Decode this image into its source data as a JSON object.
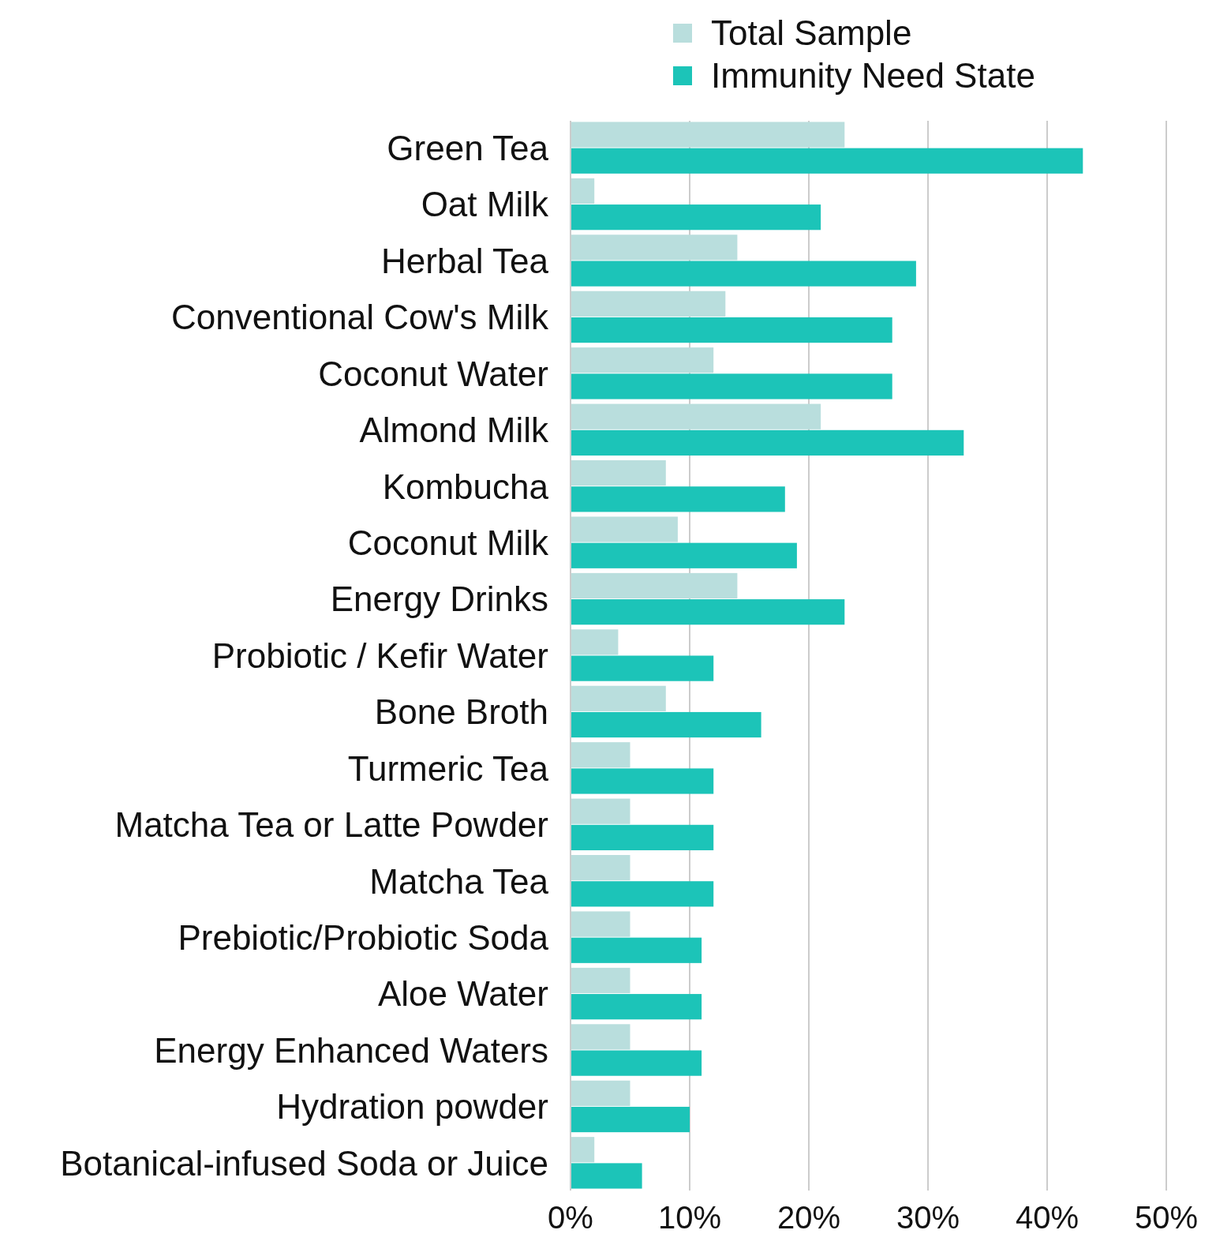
{
  "chart_data": {
    "type": "bar",
    "orientation": "horizontal",
    "categories": [
      "Green Tea",
      "Oat Milk",
      "Herbal Tea",
      "Conventional Cow's Milk",
      "Coconut Water",
      "Almond Milk",
      "Kombucha",
      "Coconut Milk",
      "Energy Drinks",
      "Probiotic / Kefir Water",
      "Bone Broth",
      "Turmeric Tea",
      "Matcha Tea or Latte Powder",
      "Matcha Tea",
      "Prebiotic/Probiotic Soda",
      "Aloe Water",
      "Energy Enhanced Waters",
      "Hydration powder",
      "Botanical-infused Soda or Juice"
    ],
    "series": [
      {
        "name": "Total Sample",
        "color": "#b9dedd",
        "values": [
          23,
          2,
          14,
          13,
          12,
          21,
          8,
          9,
          14,
          4,
          8,
          5,
          5,
          5,
          5,
          5,
          5,
          5,
          2
        ]
      },
      {
        "name": "Immunity Need State",
        "color": "#1cc4b8",
        "values": [
          43,
          21,
          29,
          27,
          27,
          33,
          18,
          19,
          23,
          12,
          16,
          12,
          12,
          12,
          11,
          11,
          11,
          10,
          6
        ]
      }
    ],
    "xlim": [
      0,
      50
    ],
    "xticks": [
      {
        "value": 0,
        "label": "0%"
      },
      {
        "value": 10,
        "label": "10%"
      },
      {
        "value": 20,
        "label": "20%"
      },
      {
        "value": 30,
        "label": "30%"
      },
      {
        "value": 40,
        "label": "40%"
      },
      {
        "value": 50,
        "label": "50%"
      }
    ],
    "grid": "x",
    "legend": "top right"
  }
}
